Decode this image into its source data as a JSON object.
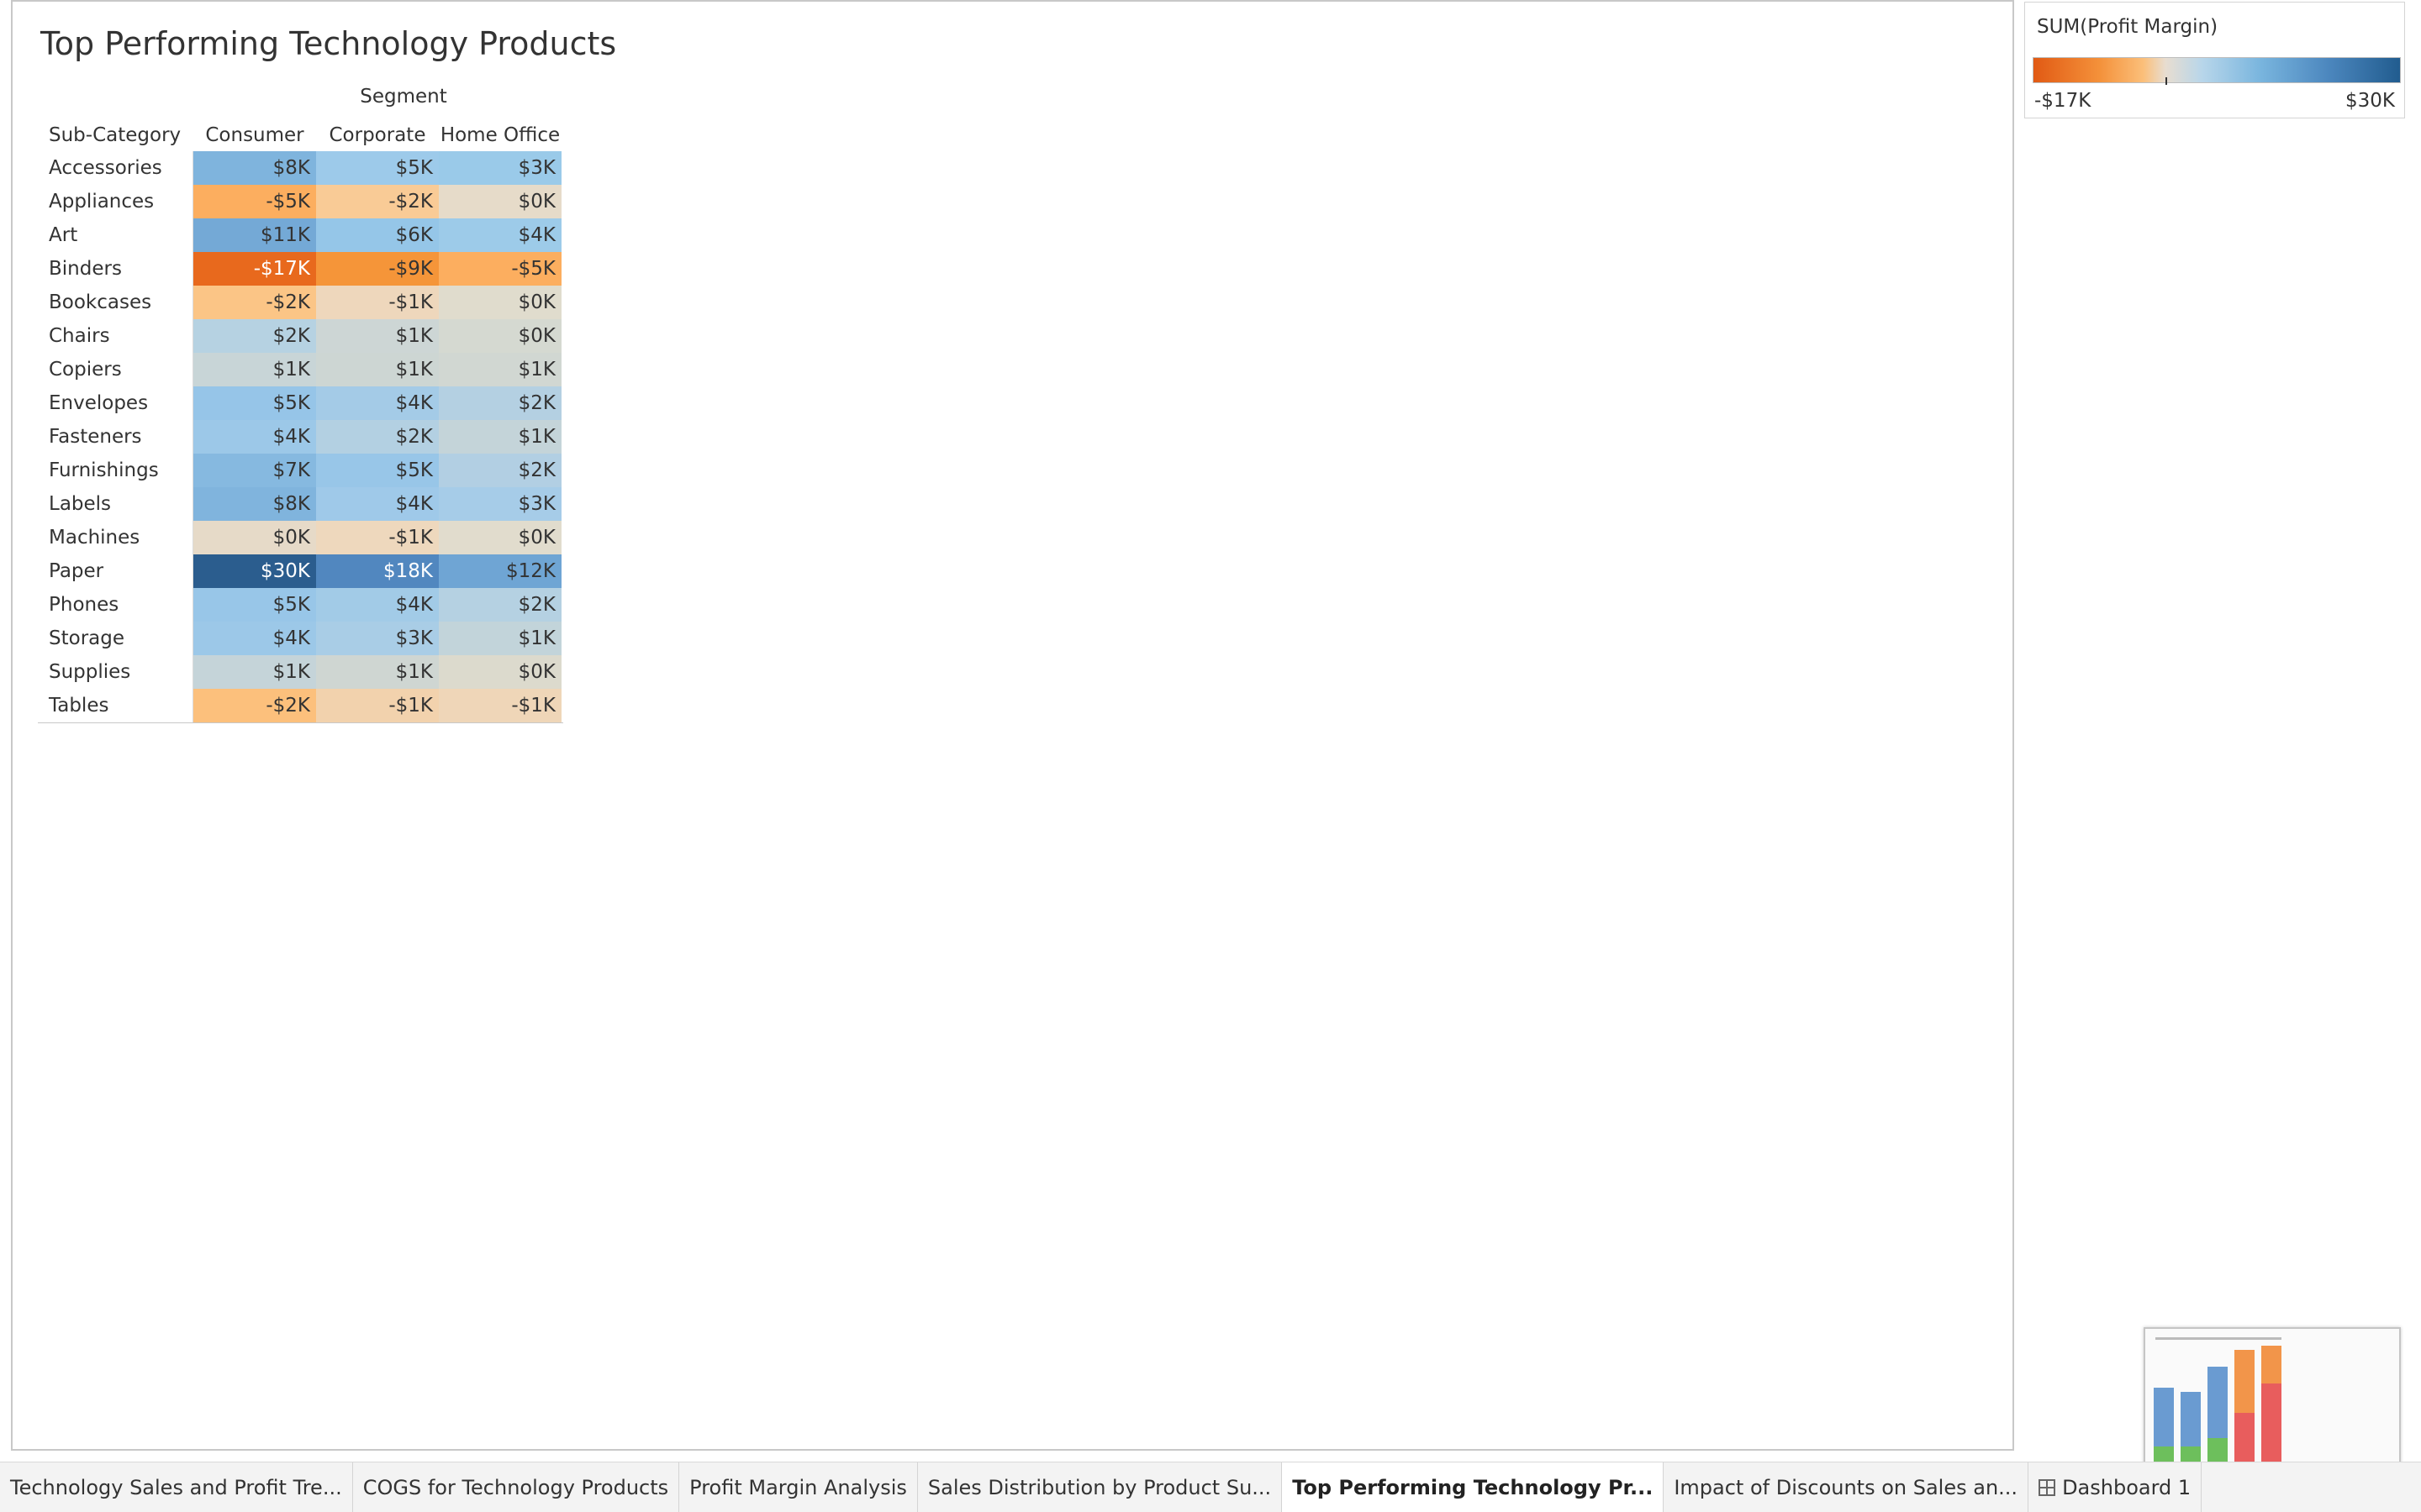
{
  "sheet": {
    "title": "Top Performing Technology Products"
  },
  "crosstab": {
    "column_group_title": "Segment",
    "row_header": "Sub-Category",
    "columns": [
      "Consumer",
      "Corporate",
      "Home Office"
    ],
    "rows": [
      {
        "label": "Accessories",
        "values": [
          "$8K",
          "$5K",
          "$3K"
        ],
        "colors": [
          "#7fb4dd",
          "#9dcaea",
          "#9acae9"
        ]
      },
      {
        "label": "Appliances",
        "values": [
          "-$5K",
          "-$2K",
          "$0K"
        ],
        "colors": [
          "#fcae5f",
          "#f9cb96",
          "#e6dbc9"
        ]
      },
      {
        "label": "Art",
        "values": [
          "$11K",
          "$6K",
          "$4K"
        ],
        "colors": [
          "#74a9d6",
          "#95c6e8",
          "#9dcbe9"
        ]
      },
      {
        "label": "Binders",
        "values": [
          "-$17K",
          "-$9K",
          "-$5K"
        ],
        "colors": [
          "#e8691d",
          "#f59539",
          "#fcae5f"
        ]
      },
      {
        "label": "Bookcases",
        "values": [
          "-$2K",
          "-$1K",
          "$0K"
        ],
        "colors": [
          "#fbc586",
          "#eed7bc",
          "#e0dccd"
        ]
      },
      {
        "label": "Chairs",
        "values": [
          "$2K",
          "$1K",
          "$0K"
        ],
        "colors": [
          "#b6d2e2",
          "#cdd6d5",
          "#d5d9d1"
        ]
      },
      {
        "label": "Copiers",
        "values": [
          "$1K",
          "$1K",
          "$1K"
        ],
        "colors": [
          "#c8d5d7",
          "#cdd6d3",
          "#d1d7d2"
        ]
      },
      {
        "label": "Envelopes",
        "values": [
          "$5K",
          "$4K",
          "$2K"
        ],
        "colors": [
          "#96c5e8",
          "#a4cbe7",
          "#b4d0e2"
        ]
      },
      {
        "label": "Fasteners",
        "values": [
          "$4K",
          "$2K",
          "$1K"
        ],
        "colors": [
          "#9cc8e8",
          "#b3d0e2",
          "#c4d4d9"
        ]
      },
      {
        "label": "Furnishings",
        "values": [
          "$7K",
          "$5K",
          "$2K"
        ],
        "colors": [
          "#86b9e0",
          "#98c6e8",
          "#b2cfe3"
        ]
      },
      {
        "label": "Labels",
        "values": [
          "$8K",
          "$4K",
          "$3K"
        ],
        "colors": [
          "#80b4dd",
          "#9fc9e9",
          "#a6cce8"
        ]
      },
      {
        "label": "Machines",
        "values": [
          "$0K",
          "-$1K",
          "$0K"
        ],
        "colors": [
          "#e6dac8",
          "#eed8bd",
          "#e1dccd"
        ]
      },
      {
        "label": "Paper",
        "values": [
          "$30K",
          "$18K",
          "$12K"
        ],
        "colors": [
          "#2b5d8e",
          "#5187bf",
          "#6fa5d4"
        ]
      },
      {
        "label": "Phones",
        "values": [
          "$5K",
          "$4K",
          "$2K"
        ],
        "colors": [
          "#98c6e8",
          "#a2cbe7",
          "#b5d1e2"
        ]
      },
      {
        "label": "Storage",
        "values": [
          "$4K",
          "$3K",
          "$1K"
        ],
        "colors": [
          "#9cc8e8",
          "#a9cde6",
          "#c2d4da"
        ]
      },
      {
        "label": "Supplies",
        "values": [
          "$1K",
          "$1K",
          "$0K"
        ],
        "colors": [
          "#c5d4d9",
          "#cfd6d2",
          "#dcdacd"
        ]
      },
      {
        "label": "Tables",
        "values": [
          "-$2K",
          "-$1K",
          "-$1K"
        ],
        "colors": [
          "#fcc07c",
          "#f2d2ad",
          "#efd6b8"
        ]
      }
    ]
  },
  "legend": {
    "title": "SUM(Profit Margin)",
    "min_label": "-$17K",
    "max_label": "$30K",
    "color_low": "#e15a14",
    "color_high": "#215c8f"
  },
  "tabs": [
    {
      "label": "Technology Sales and Profit Tre...",
      "active": false
    },
    {
      "label": "COGS for Technology Products",
      "active": false
    },
    {
      "label": "Profit Margin Analysis",
      "active": false
    },
    {
      "label": "Sales Distribution by Product Su...",
      "active": false
    },
    {
      "label": "Top Performing Technology Pr...",
      "active": true
    },
    {
      "label": "Impact of Discounts on Sales an...",
      "active": false
    },
    {
      "label": "Dashboard 1",
      "active": false,
      "icon": "dashboard-grid-icon"
    }
  ]
}
